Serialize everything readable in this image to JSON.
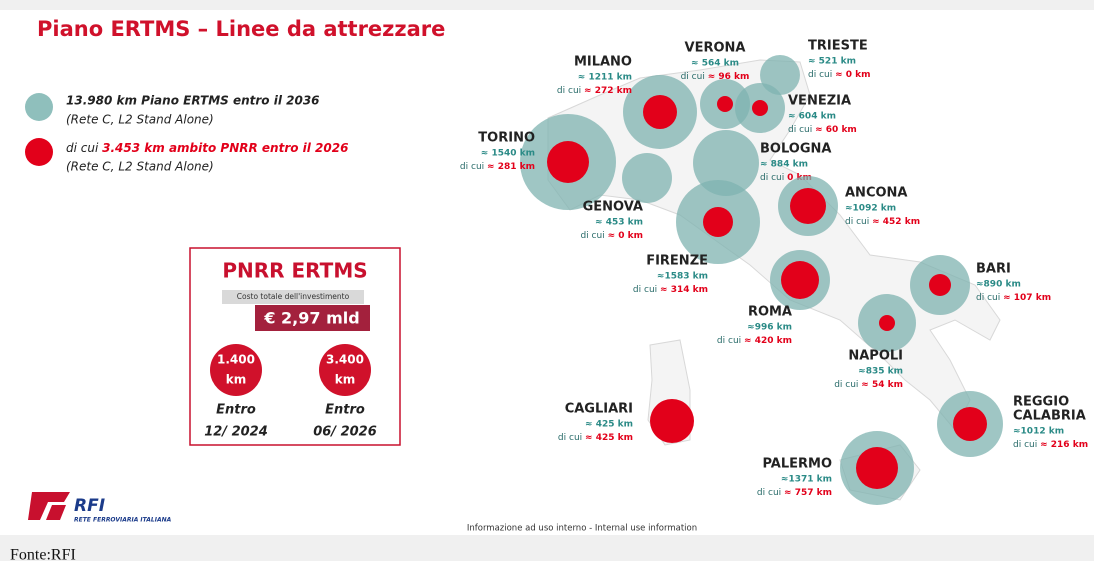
{
  "title": "Piano ERTMS –  Linee da attrezzare",
  "legend": [
    {
      "text": "13.980 km Piano ERTMS entro il 2036",
      "note": "(Rete C, L2 Stand Alone)"
    },
    {
      "prefix": "di cui",
      "text": "3.453 km ambito PNRR entro il 2026",
      "note": "(Rete C, L2 Stand Alone)"
    }
  ],
  "box": {
    "title": "PNRR ERTMS",
    "cost_label": "Costo totale dell'investimento",
    "cost": "€ 2,97 mld",
    "milestones": [
      {
        "km": "1.400",
        "unit": "km",
        "label": "Entro",
        "date": "12/ 2024"
      },
      {
        "km": "3.400",
        "unit": "km",
        "label": "Entro",
        "date": "06/ 2026"
      }
    ]
  },
  "subset_prefix": "di cui",
  "cities": [
    {
      "name": [
        "MILANO"
      ],
      "total": "≈ 1211 km",
      "subset": "≈ 272 km"
    },
    {
      "name": [
        "VERONA"
      ],
      "total": "≈ 564 km",
      "subset": "≈ 96 km"
    },
    {
      "name": [
        "TRIESTE"
      ],
      "total": "≈ 521 km",
      "subset": "≈ 0 km"
    },
    {
      "name": [
        "VENEZIA"
      ],
      "total": "≈ 604 km",
      "subset": "≈ 60 km"
    },
    {
      "name": [
        "TORINO"
      ],
      "total": "≈ 1540 km",
      "subset": "≈ 281 km"
    },
    {
      "name": [
        "GENOVA"
      ],
      "total": "≈ 453 km",
      "subset": "≈ 0 km"
    },
    {
      "name": [
        "BOLOGNA"
      ],
      "total": "≈ 884 km",
      "subset": "0 km"
    },
    {
      "name": [
        "FIRENZE"
      ],
      "total": "≈1583 km",
      "subset": "≈ 314 km"
    },
    {
      "name": [
        "ANCONA"
      ],
      "total": "≈1092 km",
      "subset": "≈ 452 km"
    },
    {
      "name": [
        "ROMA"
      ],
      "total": "≈996 km",
      "subset": "≈ 420 km"
    },
    {
      "name": [
        "BARI"
      ],
      "total": "≈890 km",
      "subset": "≈ 107 km"
    },
    {
      "name": [
        "NAPOLI"
      ],
      "total": "≈835 km",
      "subset": "≈ 54 km"
    },
    {
      "name": [
        "REGGIO",
        "CALABRIA"
      ],
      "total": "≈1012 km",
      "subset": "≈ 216 km"
    },
    {
      "name": [
        "CAGLIARI"
      ],
      "total": "≈ 425 km",
      "subset": "≈ 425 km"
    },
    {
      "name": [
        "PALERMO"
      ],
      "total": "≈1371 km",
      "subset": "≈ 757 km"
    }
  ],
  "logo": {
    "name": "RFI",
    "sub": "RETE FERROVIARIA ITALIANA"
  },
  "footer": "Informazione ad uso interno - Internal use information",
  "caption": "Fonte:RFI"
}
